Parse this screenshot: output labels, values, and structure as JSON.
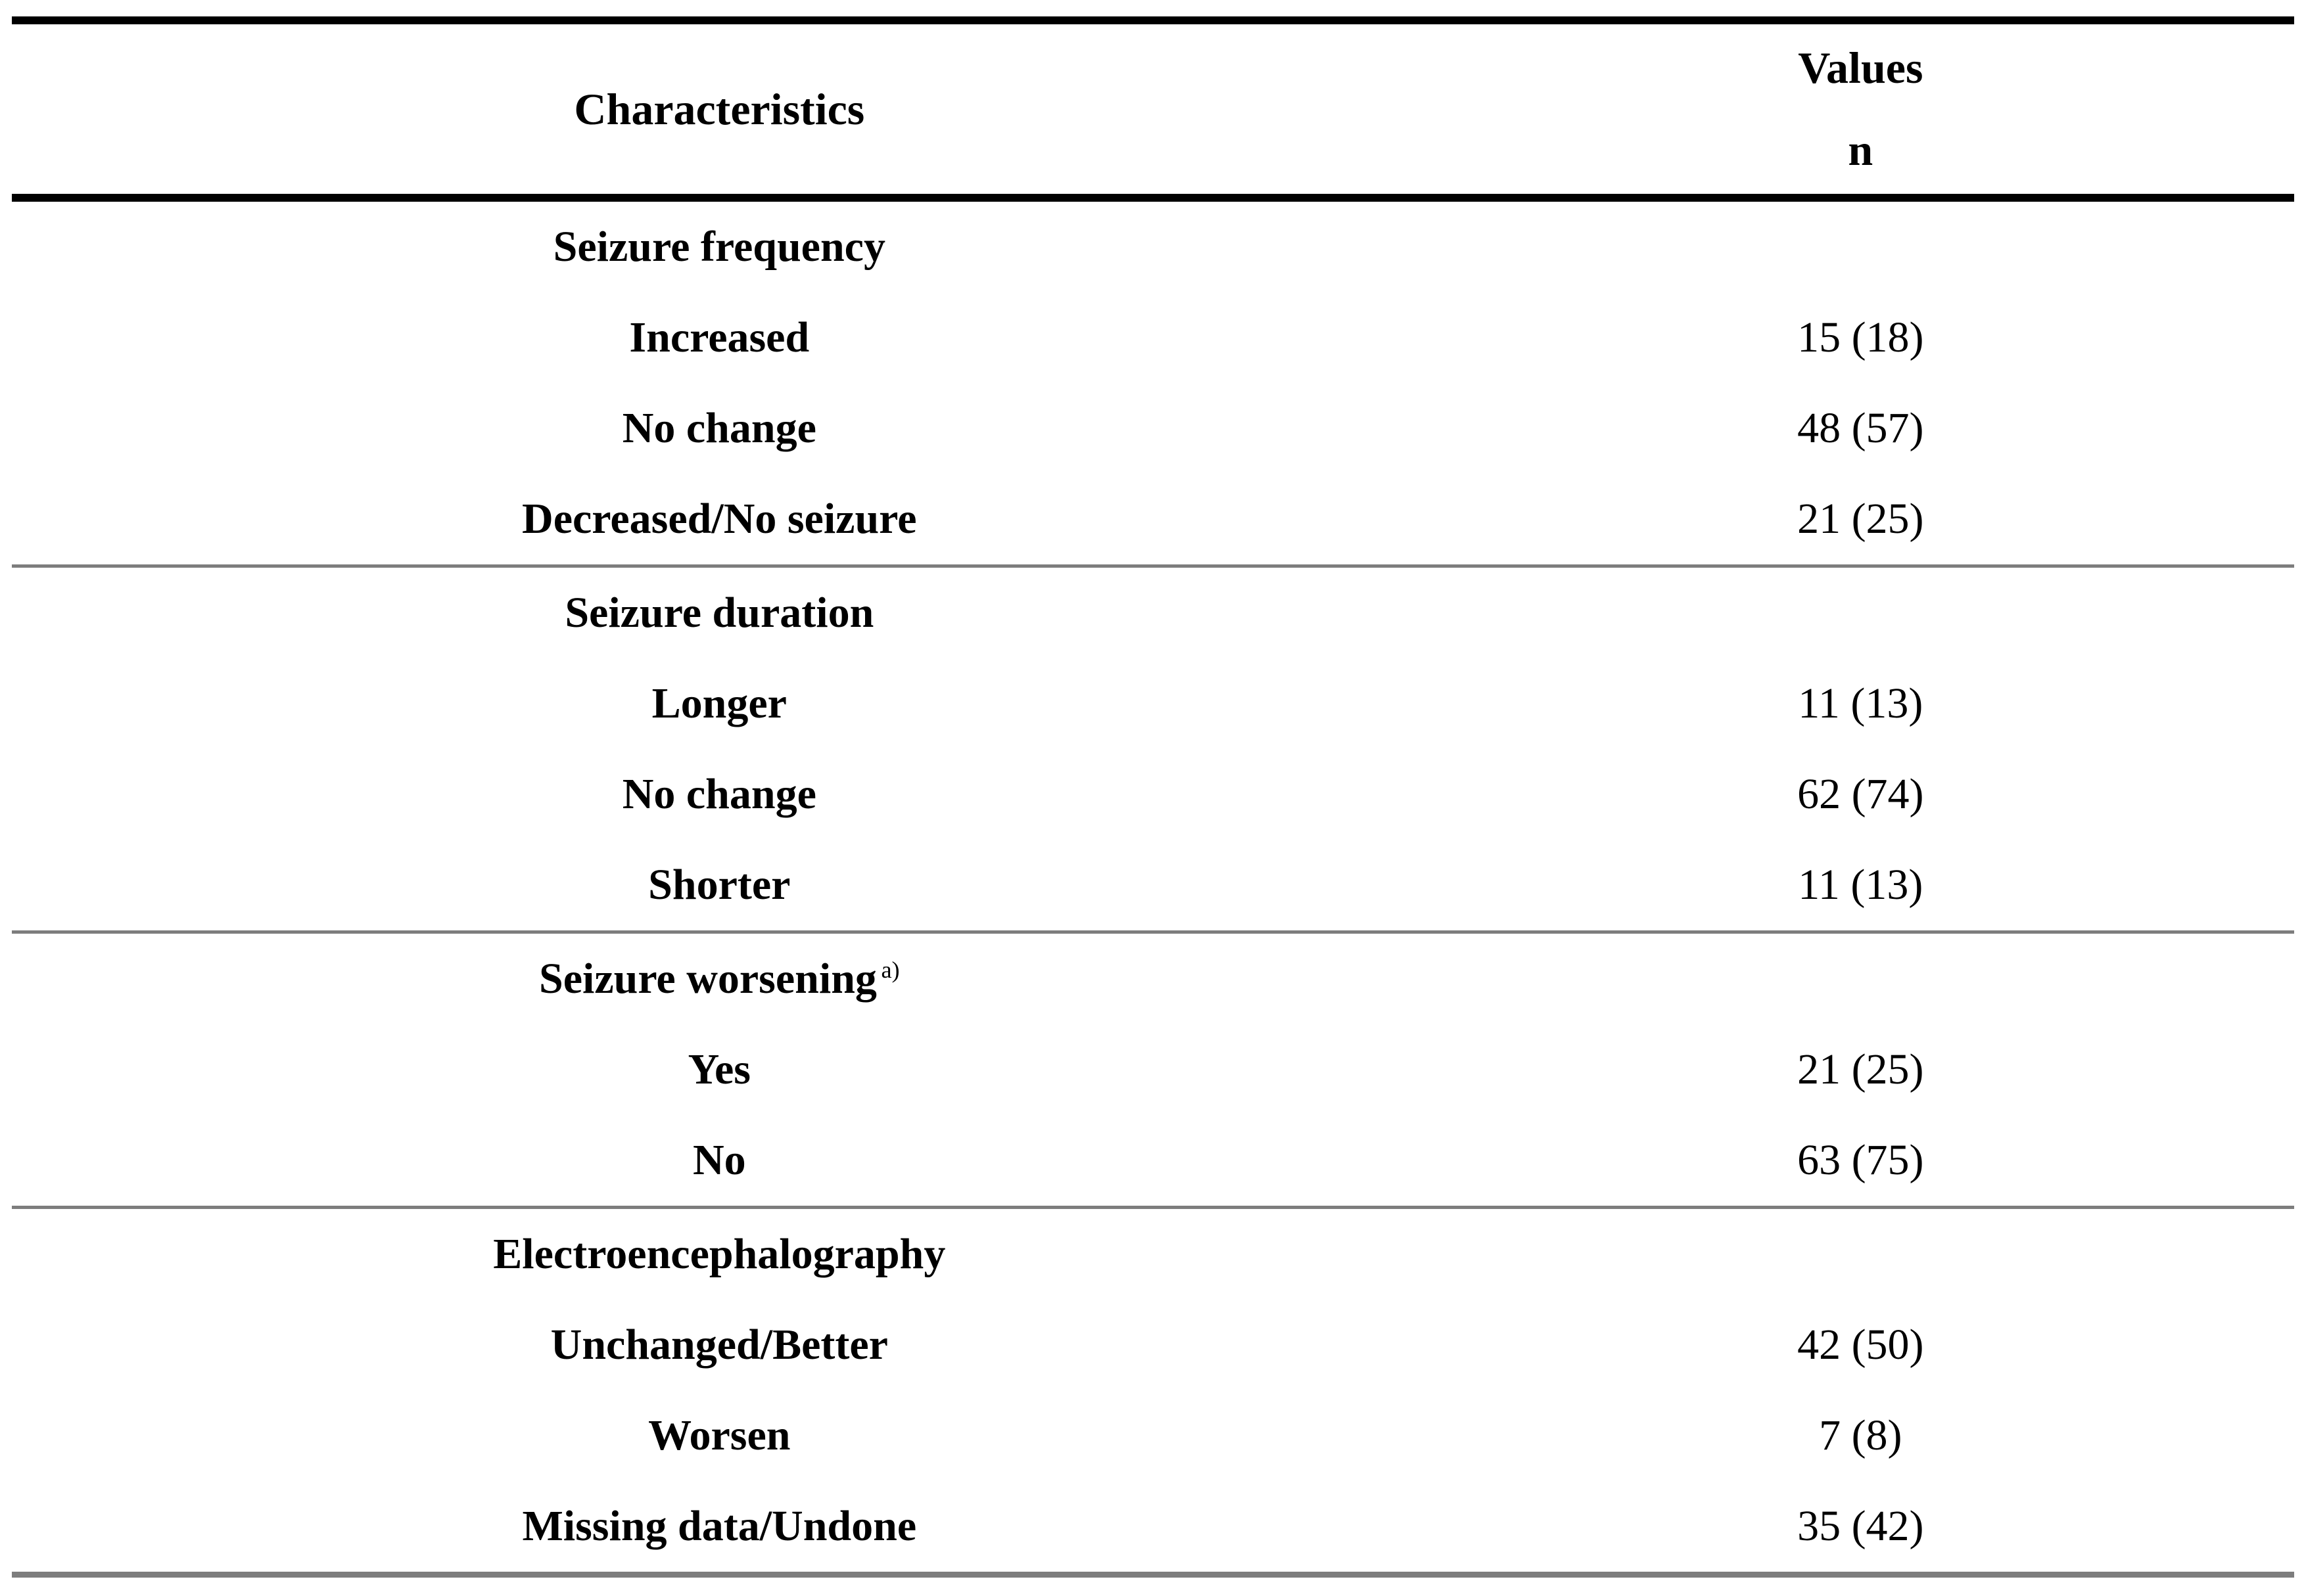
{
  "colors": {
    "rule_black": "#000000",
    "rule_gray": "#7d7d7d"
  },
  "table": {
    "header": {
      "characteristics": "Characteristics",
      "values_line1": "Values",
      "values_line2": "n"
    },
    "sections": [
      {
        "title": "Seizure frequency",
        "rows": [
          {
            "label": "Increased",
            "value": "15 (18)"
          },
          {
            "label": "No change",
            "value": "48 (57)"
          },
          {
            "label": "Decreased/No seizure",
            "value": "21 (25)"
          }
        ]
      },
      {
        "title": "Seizure duration",
        "rows": [
          {
            "label": "Longer",
            "value": "11 (13)"
          },
          {
            "label": "No change",
            "value": "62 (74)"
          },
          {
            "label": "Shorter",
            "value": "11 (13)"
          }
        ]
      },
      {
        "title": "Seizure worsening",
        "superscript": "a)",
        "rows": [
          {
            "label": "Yes",
            "value": "21 (25)"
          },
          {
            "label": "No",
            "value": "63 (75)"
          }
        ]
      },
      {
        "title": "Electroencephalography",
        "rows": [
          {
            "label": "Unchanged/Better",
            "value": "42 (50)"
          },
          {
            "label": "Worsen",
            "value": "7 (8)"
          },
          {
            "label": "Missing data/Undone",
            "value": "35 (42)"
          }
        ]
      }
    ]
  }
}
